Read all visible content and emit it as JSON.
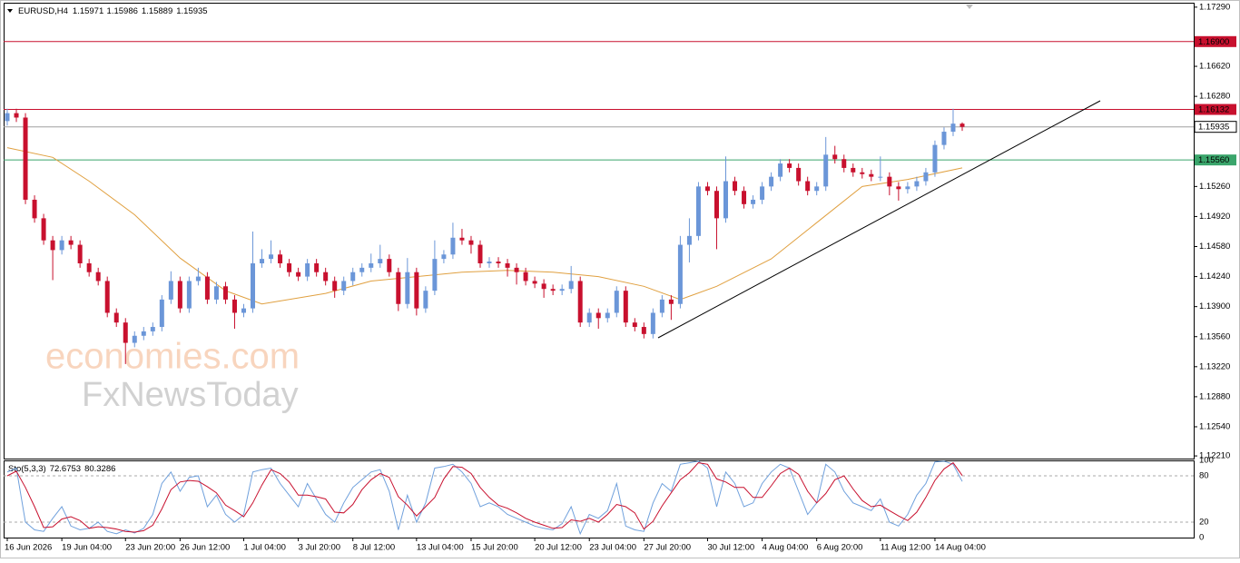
{
  "chart_data": {
    "type": "candlestick",
    "symbol": "EURUSD,H4",
    "up_color": "#6b96d8",
    "down_color": "#c8102e",
    "categories": [
      "16 Jun 2026",
      null,
      null,
      null,
      null,
      null,
      "19 Jun 04:00",
      null,
      null,
      null,
      null,
      null,
      null,
      "23 Jun 20:00",
      null,
      null,
      null,
      null,
      null,
      "26 Jun 12:00",
      null,
      null,
      null,
      null,
      null,
      null,
      "1 Jul 04:00",
      null,
      null,
      null,
      null,
      null,
      "3 Jul 20:00",
      null,
      null,
      null,
      null,
      null,
      "8 Jul 12:00",
      null,
      null,
      null,
      null,
      null,
      null,
      "13 Jul 04:00",
      null,
      null,
      null,
      null,
      null,
      "15 Jul 20:00",
      null,
      null,
      null,
      null,
      null,
      null,
      "20 Jul 12:00",
      null,
      null,
      null,
      null,
      null,
      "23 Jul 04:00",
      null,
      null,
      null,
      null,
      null,
      "27 Jul 20:00",
      null,
      null,
      null,
      null,
      null,
      null,
      "30 Jul 12:00",
      null,
      null,
      null,
      null,
      null,
      "4 Aug 04:00",
      null,
      null,
      null,
      null,
      null,
      "6 Aug 20:00",
      null,
      null,
      null,
      null,
      null,
      null,
      "11 Aug 12:00",
      null,
      null,
      null,
      null,
      null,
      "14 Aug 04:00",
      null,
      null,
      null
    ],
    "open": [
      1.16,
      1.1609,
      1.1604,
      1.1511,
      1.149,
      1.1465,
      1.1454,
      1.1465,
      1.146,
      1.1439,
      1.1429,
      1.1419,
      1.1383,
      1.1372,
      1.1349,
      1.1357,
      1.1362,
      1.1367,
      1.1398,
      1.1419,
      1.1388,
      1.1419,
      1.1424,
      1.1398,
      1.1413,
      1.1398,
      1.1383,
      1.1388,
      1.1439,
      1.1444,
      1.1449,
      1.1439,
      1.1429,
      1.1424,
      1.1439,
      1.1429,
      1.1419,
      1.1408,
      1.1419,
      1.1429,
      1.1434,
      1.1439,
      1.1444,
      1.1429,
      1.1393,
      1.1429,
      1.1388,
      1.1408,
      1.1444,
      1.1449,
      1.1468,
      1.1465,
      1.146,
      1.1439,
      1.1441,
      1.1439,
      1.1434,
      1.1429,
      1.1419,
      1.1416,
      1.141,
      1.1408,
      1.141,
      1.1419,
      1.1372,
      1.1383,
      1.1377,
      1.1383,
      1.1408,
      1.1372,
      1.1367,
      1.1359,
      1.1383,
      1.1398,
      1.1393,
      1.146,
      1.147,
      1.1526,
      1.1521,
      1.149,
      1.1532,
      1.1521,
      1.1506,
      1.1511,
      1.1526,
      1.1537,
      1.1552,
      1.1547,
      1.1532,
      1.1521,
      1.1526,
      1.1562,
      1.1557,
      1.1547,
      1.1542,
      1.154,
      1.1537,
      1.1537,
      1.1526,
      1.1523,
      1.1526,
      1.1532,
      1.1542,
      1.1573,
      1.1588,
      1.15971
    ],
    "high": [
      1.1614,
      1.1614,
      1.1609,
      1.1516,
      1.1495,
      1.147,
      1.147,
      1.147,
      1.1465,
      1.1444,
      1.1434,
      1.1424,
      1.1388,
      1.1377,
      1.1362,
      1.1367,
      1.1372,
      1.1403,
      1.143,
      1.1424,
      1.1424,
      1.1434,
      1.1429,
      1.1418,
      1.1418,
      1.1403,
      1.1393,
      1.1475,
      1.1455,
      1.1465,
      1.1454,
      1.1444,
      1.1434,
      1.1444,
      1.1444,
      1.1434,
      1.1424,
      1.1424,
      1.1434,
      1.1439,
      1.145,
      1.146,
      1.1449,
      1.1434,
      1.1445,
      1.1434,
      1.1413,
      1.1465,
      1.1454,
      1.1485,
      1.1478,
      1.147,
      1.1465,
      1.1446,
      1.1446,
      1.1444,
      1.1439,
      1.1434,
      1.1424,
      1.1421,
      1.1415,
      1.1415,
      1.1436,
      1.1424,
      1.1388,
      1.1388,
      1.1388,
      1.1413,
      1.1413,
      1.1377,
      1.1372,
      1.1388,
      1.1403,
      1.1403,
      1.147,
      1.149,
      1.1531,
      1.1531,
      1.1526,
      1.156,
      1.1537,
      1.1526,
      1.1516,
      1.1531,
      1.1542,
      1.1557,
      1.1557,
      1.1552,
      1.1537,
      1.1531,
      1.1582,
      1.1572,
      1.1562,
      1.1552,
      1.1547,
      1.1545,
      1.156,
      1.1542,
      1.1531,
      1.1531,
      1.1537,
      1.1547,
      1.1578,
      1.1593,
      1.1614,
      1.15986
    ],
    "low": [
      1.1595,
      1.1599,
      1.1506,
      1.1485,
      1.146,
      1.142,
      1.1449,
      1.1455,
      1.1434,
      1.1424,
      1.1414,
      1.1378,
      1.1367,
      1.1325,
      1.1344,
      1.1352,
      1.1357,
      1.1362,
      1.1393,
      1.1383,
      1.1383,
      1.1414,
      1.1393,
      1.1393,
      1.1393,
      1.1365,
      1.1378,
      1.1383,
      1.1434,
      1.1439,
      1.1434,
      1.1424,
      1.1419,
      1.1419,
      1.1424,
      1.1414,
      1.14,
      1.1403,
      1.1414,
      1.1424,
      1.1429,
      1.1434,
      1.1424,
      1.1385,
      1.1388,
      1.138,
      1.1383,
      1.1403,
      1.1439,
      1.1444,
      1.146,
      1.145,
      1.1434,
      1.1434,
      1.1434,
      1.1424,
      1.1415,
      1.1414,
      1.1411,
      1.14,
      1.1403,
      1.1403,
      1.1405,
      1.1367,
      1.1367,
      1.1365,
      1.1372,
      1.1378,
      1.1367,
      1.1362,
      1.1354,
      1.1354,
      1.1378,
      1.1375,
      1.1388,
      1.144,
      1.1465,
      1.1516,
      1.1455,
      1.1485,
      1.1516,
      1.1501,
      1.1501,
      1.1506,
      1.1521,
      1.1532,
      1.1542,
      1.1527,
      1.1516,
      1.1516,
      1.1521,
      1.1552,
      1.1542,
      1.1537,
      1.1535,
      1.1532,
      1.1532,
      1.1516,
      1.151,
      1.1518,
      1.1521,
      1.1527,
      1.1537,
      1.1568,
      1.1583,
      1.15889
    ],
    "close": [
      1.1609,
      1.1604,
      1.1511,
      1.149,
      1.1465,
      1.1454,
      1.1465,
      1.146,
      1.1439,
      1.1429,
      1.1419,
      1.1383,
      1.1372,
      1.1349,
      1.1357,
      1.1362,
      1.1367,
      1.1398,
      1.1419,
      1.1388,
      1.1419,
      1.1424,
      1.1398,
      1.1413,
      1.1398,
      1.1383,
      1.1388,
      1.1439,
      1.1444,
      1.1449,
      1.1439,
      1.1429,
      1.1424,
      1.1439,
      1.1429,
      1.1419,
      1.1408,
      1.1419,
      1.1429,
      1.1434,
      1.1439,
      1.1444,
      1.1429,
      1.1393,
      1.1429,
      1.1388,
      1.1408,
      1.1444,
      1.1449,
      1.1468,
      1.1465,
      1.146,
      1.1439,
      1.1441,
      1.1439,
      1.1434,
      1.1429,
      1.1419,
      1.1416,
      1.141,
      1.1408,
      1.141,
      1.1419,
      1.1372,
      1.1383,
      1.1377,
      1.1383,
      1.1408,
      1.1372,
      1.1367,
      1.1359,
      1.1383,
      1.1398,
      1.1393,
      1.146,
      1.147,
      1.1526,
      1.1521,
      1.149,
      1.1532,
      1.1521,
      1.1506,
      1.1511,
      1.1526,
      1.1537,
      1.1552,
      1.1547,
      1.1532,
      1.1521,
      1.1526,
      1.1562,
      1.1557,
      1.1547,
      1.1542,
      1.154,
      1.1537,
      1.1537,
      1.1526,
      1.1523,
      1.1526,
      1.1532,
      1.1542,
      1.1573,
      1.1588,
      1.15971,
      1.15935
    ],
    "ylim": [
      1.1218,
      1.1734
    ],
    "yticks": [
      {
        "value": 1.1729,
        "label": "1.17290"
      },
      {
        "value": 1.1662,
        "label": "1.16620"
      },
      {
        "value": 1.1628,
        "label": "1.16280"
      },
      {
        "value": 1.1526,
        "label": "1.15260"
      },
      {
        "value": 1.1492,
        "label": "1.14920"
      },
      {
        "value": 1.1458,
        "label": "1.14580"
      },
      {
        "value": 1.1424,
        "label": "1.14240"
      },
      {
        "value": 1.139,
        "label": "1.13900"
      },
      {
        "value": 1.1356,
        "label": "1.13560"
      },
      {
        "value": 1.1322,
        "label": "1.13220"
      },
      {
        "value": 1.1288,
        "label": "1.12880"
      },
      {
        "value": 1.1254,
        "label": "1.12540"
      },
      {
        "value": 1.1221,
        "label": "1.12210"
      }
    ],
    "levels": [
      {
        "value": 1.169,
        "label": "1.16900",
        "color": "#c8102e"
      },
      {
        "value": 1.16132,
        "label": "1.16132",
        "color": "#c8102e"
      },
      {
        "value": 1.1556,
        "label": "1.15560",
        "color": "#3aa56b"
      }
    ],
    "price_line_color": "#a0a0a0",
    "ma": {
      "color": "#e0a040",
      "x": [
        0,
        5,
        9,
        14,
        19,
        24,
        28,
        35,
        40,
        45,
        50,
        55,
        60,
        65,
        70,
        74,
        78,
        84,
        89,
        94,
        99,
        105
      ],
      "values": [
        1.157,
        1.1559,
        1.1532,
        1.1494,
        1.1445,
        1.1408,
        1.1393,
        1.1405,
        1.1419,
        1.1424,
        1.1429,
        1.1431,
        1.1429,
        1.1424,
        1.1413,
        1.1398,
        1.1413,
        1.1444,
        1.1485,
        1.1526,
        1.1534,
        1.1547
      ]
    },
    "stochastic": {
      "label": "Sto(5,3,3)",
      "k_color": "#6fa0dc",
      "d_color": "#c8102e",
      "ylim": [
        0,
        100
      ],
      "yticks": [
        0,
        20,
        80,
        100
      ],
      "k": [
        85,
        90,
        20,
        10,
        8,
        25,
        40,
        15,
        10,
        12,
        20,
        8,
        5,
        10,
        6,
        12,
        30,
        70,
        85,
        60,
        78,
        80,
        40,
        55,
        30,
        20,
        30,
        85,
        88,
        90,
        70,
        55,
        40,
        70,
        50,
        30,
        20,
        45,
        65,
        75,
        85,
        88,
        60,
        10,
        55,
        20,
        45,
        90,
        92,
        95,
        85,
        70,
        40,
        45,
        40,
        30,
        25,
        20,
        15,
        12,
        10,
        18,
        40,
        5,
        30,
        25,
        35,
        70,
        15,
        10,
        8,
        45,
        70,
        60,
        95,
        97,
        99,
        90,
        40,
        85,
        70,
        40,
        45,
        70,
        85,
        95,
        90,
        60,
        30,
        45,
        95,
        85,
        60,
        45,
        40,
        35,
        50,
        20,
        15,
        30,
        55,
        70,
        98,
        99,
        95,
        72.6753
      ],
      "d": [
        80,
        86,
        65,
        40,
        13,
        14,
        24,
        27,
        22,
        12,
        14,
        13,
        11,
        8,
        7,
        9,
        16,
        37,
        62,
        72,
        74,
        73,
        66,
        58,
        42,
        35,
        27,
        45,
        68,
        88,
        83,
        72,
        55,
        55,
        53,
        50,
        33,
        32,
        43,
        62,
        75,
        83,
        78,
        53,
        42,
        28,
        40,
        52,
        76,
        92,
        91,
        83,
        65,
        52,
        42,
        38,
        32,
        25,
        20,
        16,
        12,
        13,
        23,
        21,
        25,
        20,
        30,
        43,
        40,
        32,
        11,
        21,
        41,
        58,
        75,
        84,
        97,
        95,
        76,
        72,
        65,
        65,
        52,
        52,
        67,
        83,
        90,
        82,
        60,
        45,
        57,
        75,
        80,
        63,
        48,
        40,
        42,
        35,
        28,
        22,
        33,
        52,
        74,
        89,
        97,
        80.3286
      ]
    },
    "watermark": [
      "economies.com",
      "FxNewsToday"
    ]
  }
}
